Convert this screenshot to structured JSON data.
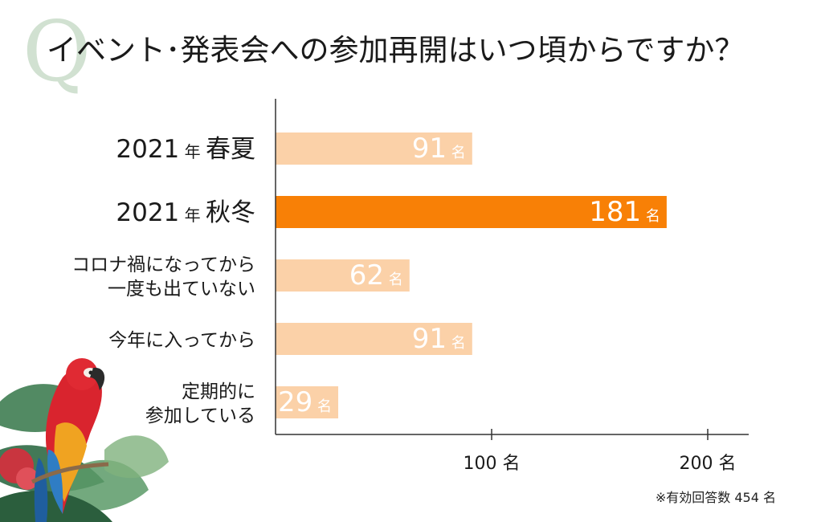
{
  "title": "イベント･発表会への参加再開はいつ頃からですか？",
  "q_mark": "Q",
  "note": "※有効回答数 454 名",
  "colors": {
    "bar_default": "#fbd1a8",
    "bar_highlight": "#f88006",
    "axis": "#333333",
    "bar_label": "#ffffff"
  },
  "chart_data": {
    "type": "bar",
    "orientation": "horizontal",
    "categories": [
      {
        "lines": [
          "2021 年 春夏"
        ],
        "parts": [
          [
            "2021",
            "num"
          ],
          [
            " 年 ",
            "small"
          ],
          [
            "春夏",
            "big"
          ]
        ]
      },
      {
        "lines": [
          "2021 年 秋冬"
        ],
        "parts": [
          [
            "2021",
            "num"
          ],
          [
            " 年 ",
            "small"
          ],
          [
            "秋冬",
            "big"
          ]
        ]
      },
      {
        "lines": [
          "コロナ禍になってから",
          "一度も出ていない"
        ]
      },
      {
        "lines": [
          "今年に入ってから"
        ]
      },
      {
        "lines": [
          "定期的に",
          "参加している"
        ]
      }
    ],
    "values": [
      91,
      181,
      62,
      91,
      29
    ],
    "highlight_index": 1,
    "unit": "名",
    "xlim": [
      0,
      218
    ],
    "xticks": [
      100,
      200
    ],
    "xtick_labels": [
      "100 名",
      "200 名"
    ],
    "grid": false,
    "legend": "none"
  }
}
